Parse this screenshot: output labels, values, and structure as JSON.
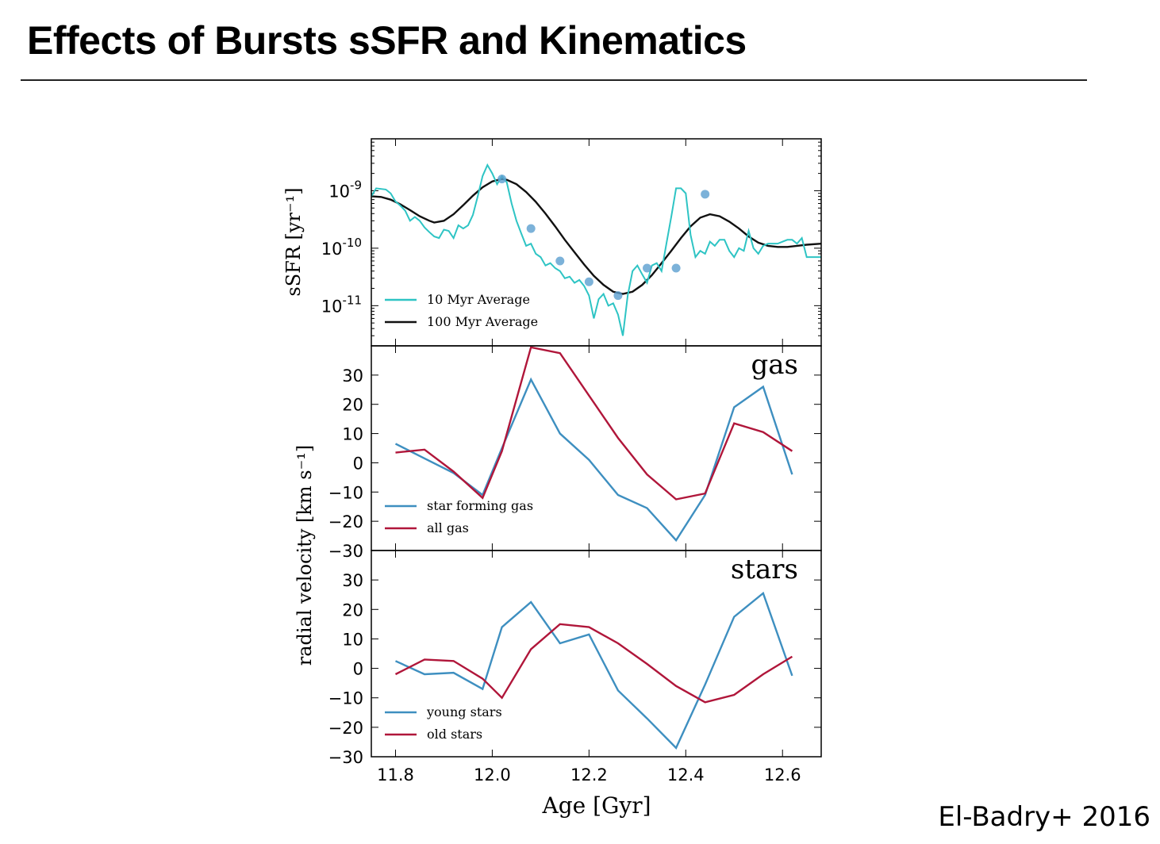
{
  "slide": {
    "title": "Effects of Bursts sSFR and Kinematics",
    "citation": "El-Badry+ 2016"
  },
  "colors": {
    "ssfr_10": "#2ec4c4",
    "ssfr_100": "#111111",
    "blue": "#3e8fc0",
    "red": "#b0163a",
    "marker": "#5b9fd0"
  },
  "chart_data": [
    {
      "type": "line",
      "ylabel": "sSFR [yr⁻¹]",
      "yscale": "log",
      "xlim": [
        11.75,
        12.68
      ],
      "ylim": [
        2e-12,
        8e-09
      ],
      "y_ticks": [
        {
          "value": 1e-09,
          "base": "10",
          "exp": "-9"
        },
        {
          "value": 1e-10,
          "base": "10",
          "exp": "-10"
        },
        {
          "value": 1e-11,
          "base": "10",
          "exp": "-11"
        }
      ],
      "legend": "lower-left",
      "series": [
        {
          "name": "10 Myr Average",
          "x": [
            11.75,
            11.76,
            11.78,
            11.79,
            11.8,
            11.81,
            11.82,
            11.83,
            11.84,
            11.85,
            11.86,
            11.87,
            11.88,
            11.89,
            11.9,
            11.91,
            11.92,
            11.93,
            11.94,
            11.95,
            11.96,
            11.97,
            11.98,
            11.99,
            12.0,
            12.01,
            12.02,
            12.03,
            12.04,
            12.05,
            12.06,
            12.07,
            12.08,
            12.09,
            12.1,
            12.11,
            12.12,
            12.13,
            12.14,
            12.15,
            12.16,
            12.17,
            12.18,
            12.19,
            12.2,
            12.21,
            12.22,
            12.23,
            12.24,
            12.25,
            12.26,
            12.27,
            12.28,
            12.29,
            12.3,
            12.31,
            12.32,
            12.33,
            12.34,
            12.35,
            12.36,
            12.37,
            12.38,
            12.39,
            12.4,
            12.41,
            12.42,
            12.43,
            12.44,
            12.45,
            12.46,
            12.47,
            12.48,
            12.49,
            12.5,
            12.51,
            12.52,
            12.53,
            12.54,
            12.55,
            12.56,
            12.57,
            12.58,
            12.59,
            12.6,
            12.61,
            12.62,
            12.63,
            12.64,
            12.65,
            12.66,
            12.67,
            12.68
          ],
          "y": [
            8e-10,
            1.1e-09,
            1.05e-09,
            9e-10,
            6.5e-10,
            5.5e-10,
            4.5e-10,
            3e-10,
            3.5e-10,
            3e-10,
            2.3e-10,
            1.9e-10,
            1.6e-10,
            1.5e-10,
            2.1e-10,
            2e-10,
            1.5e-10,
            2.5e-10,
            2.2e-10,
            2.5e-10,
            3.8e-10,
            8e-10,
            1.8e-09,
            2.8e-09,
            2e-09,
            1.3e-09,
            1.8e-09,
            1.4e-09,
            6e-10,
            3e-10,
            1.8e-10,
            1.1e-10,
            1.2e-10,
            8e-11,
            7e-11,
            5e-11,
            5.5e-11,
            4.5e-11,
            4e-11,
            3e-11,
            3.2e-11,
            2.5e-11,
            2.8e-11,
            2.2e-11,
            1.5e-11,
            6e-12,
            1.3e-11,
            1.6e-11,
            1e-11,
            1.1e-11,
            7e-12,
            3e-12,
            1.5e-11,
            4e-11,
            5e-11,
            3.5e-11,
            2.5e-11,
            5e-11,
            5.5e-11,
            4e-11,
            1.2e-10,
            3.5e-10,
            1.1e-09,
            1.1e-09,
            9e-10,
            1.7e-10,
            7e-11,
            9e-11,
            8e-11,
            1.3e-10,
            1.1e-10,
            1.4e-10,
            1.4e-10,
            9e-11,
            7e-11,
            1e-10,
            9e-11,
            2e-10,
            1e-10,
            8e-11,
            1.1e-10,
            1.2e-10,
            1.2e-10,
            1.2e-10,
            1.3e-10,
            1.4e-10,
            1.4e-10,
            1.2e-10,
            1.5e-10,
            7e-11,
            7e-11,
            7e-11,
            7e-11
          ]
        },
        {
          "name": "100 Myr Average",
          "x": [
            11.75,
            11.77,
            11.79,
            11.81,
            11.83,
            11.85,
            11.87,
            11.88,
            11.9,
            11.92,
            11.94,
            11.96,
            11.98,
            12.0,
            12.02,
            12.03,
            12.05,
            12.07,
            12.09,
            12.11,
            12.13,
            12.15,
            12.17,
            12.19,
            12.21,
            12.23,
            12.25,
            12.27,
            12.29,
            12.31,
            12.33,
            12.35,
            12.37,
            12.39,
            12.41,
            12.43,
            12.45,
            12.47,
            12.49,
            12.51,
            12.53,
            12.55,
            12.57,
            12.59,
            12.61,
            12.63,
            12.65,
            12.68
          ],
          "y": [
            8e-10,
            7.8e-10,
            7e-10,
            5.8e-10,
            4.6e-10,
            3.6e-10,
            3e-10,
            2.8e-10,
            3e-10,
            3.9e-10,
            5.6e-10,
            8.2e-10,
            1.15e-09,
            1.45e-09,
            1.6e-09,
            1.55e-09,
            1.3e-09,
            9.5e-10,
            6.4e-10,
            4e-10,
            2.4e-10,
            1.4e-10,
            8.5e-11,
            5.2e-11,
            3.3e-11,
            2.3e-11,
            1.75e-11,
            1.6e-11,
            1.75e-11,
            2.3e-11,
            3.4e-11,
            5.5e-11,
            9e-11,
            1.5e-10,
            2.4e-10,
            3.4e-10,
            3.9e-10,
            3.6e-10,
            2.9e-10,
            2.2e-10,
            1.6e-10,
            1.25e-10,
            1.1e-10,
            1.05e-10,
            1.05e-10,
            1.1e-10,
            1.15e-10,
            1.2e-10
          ]
        },
        {
          "name": "markers",
          "x": [
            12.02,
            12.08,
            12.14,
            12.2,
            12.26,
            12.32,
            12.38,
            12.44
          ],
          "y": [
            1.6e-09,
            2.2e-10,
            6e-11,
            2.6e-11,
            1.5e-11,
            4.5e-11,
            4.5e-11,
            8.7e-10
          ]
        }
      ]
    },
    {
      "type": "line",
      "annotation": "gas",
      "xlim": [
        11.75,
        12.68
      ],
      "ylim": [
        -30,
        40
      ],
      "y_ticks": [
        "30",
        "20",
        "10",
        "0",
        "−10",
        "−20",
        "−30"
      ],
      "legend": "lower-left",
      "x": [
        11.8,
        11.86,
        11.92,
        11.98,
        12.02,
        12.08,
        12.14,
        12.2,
        12.26,
        12.32,
        12.38,
        12.44,
        12.5,
        12.56,
        12.62
      ],
      "series": [
        {
          "name": "star forming gas",
          "values": [
            6.5,
            1.5,
            -3.5,
            -11,
            5,
            28.5,
            10,
            1,
            -11,
            -15.5,
            -26.5,
            -11,
            19,
            26,
            -4
          ]
        },
        {
          "name": "all gas",
          "values": [
            3.5,
            4.5,
            -3,
            -12,
            4,
            39.5,
            37.5,
            23,
            8.5,
            -4,
            -12.5,
            -10.5,
            13.5,
            10.5,
            4
          ]
        }
      ]
    },
    {
      "type": "line",
      "annotation": "stars",
      "xlim": [
        11.75,
        12.68
      ],
      "ylim": [
        -30,
        40
      ],
      "y_ticks": [
        "30",
        "20",
        "10",
        "0",
        "−10",
        "−20",
        "−30"
      ],
      "x_ticks": [
        "11.8",
        "12.0",
        "12.2",
        "12.4",
        "12.6"
      ],
      "xlabel": "Age [Gyr]",
      "ylabel": "radial velocity [km s⁻¹]",
      "legend": "lower-left",
      "x": [
        11.8,
        11.86,
        11.92,
        11.98,
        12.02,
        12.08,
        12.14,
        12.2,
        12.26,
        12.32,
        12.38,
        12.44,
        12.5,
        12.56,
        12.62
      ],
      "series": [
        {
          "name": "young stars",
          "values": [
            2.5,
            -2,
            -1.5,
            -7,
            14,
            22.5,
            8.5,
            11.5,
            -7.5,
            -17,
            -27,
            -5.5,
            17.5,
            25.5,
            -2.5
          ]
        },
        {
          "name": "old stars",
          "values": [
            -2,
            3,
            2.5,
            -3.5,
            -10,
            6.5,
            15,
            14,
            8.5,
            1.5,
            -6,
            -11.5,
            -9,
            -2,
            4
          ]
        }
      ]
    }
  ]
}
